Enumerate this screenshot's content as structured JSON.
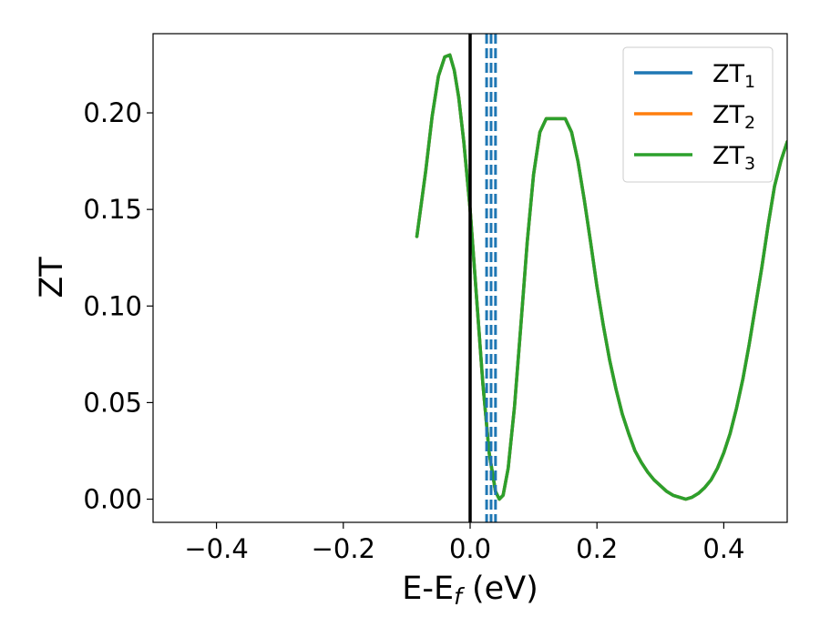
{
  "chart_data": {
    "type": "line",
    "xlabel": "E-E",
    "xlabel_subscript": "f",
    "xlabel_unit": " (eV)",
    "ylabel": "ZT",
    "xlim": [
      -0.5,
      0.5
    ],
    "ylim": [
      -0.012,
      0.241
    ],
    "xticks": [
      -0.4,
      -0.2,
      0.0,
      0.2,
      0.4
    ],
    "xtick_labels": [
      "−0.4",
      "−0.2",
      "0.0",
      "0.2",
      "0.4"
    ],
    "yticks": [
      0.0,
      0.05,
      0.1,
      0.15,
      0.2
    ],
    "ytick_labels": [
      "0.00",
      "0.05",
      "0.10",
      "0.15",
      "0.20"
    ],
    "grid": false,
    "legend": {
      "placement": "top-right",
      "entries": [
        {
          "base": "ZT",
          "sub": "1",
          "color": "#1f77b4"
        },
        {
          "base": "ZT",
          "sub": "2",
          "color": "#ff7f0e"
        },
        {
          "base": "ZT",
          "sub": "3",
          "color": "#2ca02c"
        }
      ]
    },
    "x": [
      -0.084,
      -0.07,
      -0.06,
      -0.05,
      -0.04,
      -0.032,
      -0.025,
      -0.018,
      -0.01,
      0.0,
      0.01,
      0.02,
      0.03,
      0.04,
      0.046,
      0.052,
      0.06,
      0.07,
      0.08,
      0.09,
      0.1,
      0.11,
      0.12,
      0.13,
      0.14,
      0.15,
      0.16,
      0.17,
      0.18,
      0.19,
      0.2,
      0.21,
      0.22,
      0.23,
      0.24,
      0.25,
      0.26,
      0.27,
      0.28,
      0.29,
      0.3,
      0.31,
      0.32,
      0.33,
      0.34,
      0.35,
      0.36,
      0.37,
      0.38,
      0.39,
      0.4,
      0.41,
      0.42,
      0.43,
      0.44,
      0.45,
      0.46,
      0.47,
      0.48,
      0.49,
      0.5
    ],
    "series": [
      {
        "name": "ZT₁",
        "color": "#1f77b4",
        "values": [
          0.136,
          0.17,
          0.198,
          0.219,
          0.229,
          0.23,
          0.222,
          0.208,
          0.185,
          0.15,
          0.105,
          0.06,
          0.024,
          0.004,
          0.0,
          0.002,
          0.016,
          0.048,
          0.09,
          0.133,
          0.168,
          0.19,
          0.197,
          0.197,
          0.197,
          0.197,
          0.19,
          0.175,
          0.155,
          0.133,
          0.11,
          0.09,
          0.072,
          0.057,
          0.044,
          0.034,
          0.025,
          0.019,
          0.014,
          0.01,
          0.007,
          0.004,
          0.002,
          0.001,
          0.0,
          0.001,
          0.003,
          0.006,
          0.01,
          0.016,
          0.024,
          0.034,
          0.047,
          0.062,
          0.08,
          0.1,
          0.12,
          0.142,
          0.162,
          0.175,
          0.185
        ]
      },
      {
        "name": "ZT₂",
        "color": "#ff7f0e",
        "values": [
          0.136,
          0.17,
          0.198,
          0.219,
          0.229,
          0.23,
          0.222,
          0.208,
          0.185,
          0.15,
          0.105,
          0.06,
          0.024,
          0.004,
          0.0,
          0.002,
          0.016,
          0.048,
          0.09,
          0.133,
          0.168,
          0.19,
          0.197,
          0.197,
          0.197,
          0.197,
          0.19,
          0.175,
          0.155,
          0.133,
          0.11,
          0.09,
          0.072,
          0.057,
          0.044,
          0.034,
          0.025,
          0.019,
          0.014,
          0.01,
          0.007,
          0.004,
          0.002,
          0.001,
          0.0,
          0.001,
          0.003,
          0.006,
          0.01,
          0.016,
          0.024,
          0.034,
          0.047,
          0.062,
          0.08,
          0.1,
          0.12,
          0.142,
          0.162,
          0.175,
          0.185
        ]
      },
      {
        "name": "ZT₃",
        "color": "#2ca02c",
        "values": [
          0.136,
          0.17,
          0.198,
          0.219,
          0.229,
          0.23,
          0.222,
          0.208,
          0.185,
          0.15,
          0.105,
          0.06,
          0.024,
          0.004,
          0.0,
          0.002,
          0.016,
          0.048,
          0.09,
          0.133,
          0.168,
          0.19,
          0.197,
          0.197,
          0.197,
          0.197,
          0.19,
          0.175,
          0.155,
          0.133,
          0.11,
          0.09,
          0.072,
          0.057,
          0.044,
          0.034,
          0.025,
          0.019,
          0.014,
          0.01,
          0.007,
          0.004,
          0.002,
          0.001,
          0.0,
          0.001,
          0.003,
          0.006,
          0.01,
          0.016,
          0.024,
          0.034,
          0.047,
          0.062,
          0.08,
          0.1,
          0.12,
          0.142,
          0.162,
          0.175,
          0.185
        ]
      }
    ],
    "vlines": [
      {
        "x": 0.0,
        "color": "#000000",
        "style": "solid"
      },
      {
        "x": 0.026,
        "color": "#1f77b4",
        "style": "dashed"
      },
      {
        "x": 0.033,
        "color": "#1f77b4",
        "style": "dashed"
      },
      {
        "x": 0.04,
        "color": "#1f77b4",
        "style": "dashed"
      }
    ]
  }
}
